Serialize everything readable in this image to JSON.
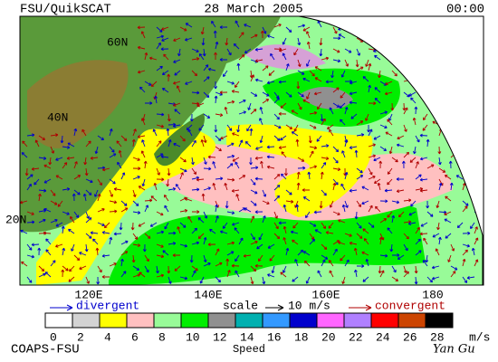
{
  "header": {
    "source": "FSU/QuikSCAT",
    "date": "28 March 2005",
    "time": "00:00"
  },
  "map": {
    "latitude_labels": [
      "60N",
      "40N",
      "20N"
    ],
    "longitude_labels": [
      "120E",
      "140E",
      "160E",
      "180"
    ]
  },
  "legend": {
    "divergent": "divergent",
    "scale": "scale",
    "scale_value": "10 m/s",
    "convergent": "convergent"
  },
  "colorbar": {
    "labels": [
      0,
      2,
      4,
      6,
      8,
      10,
      12,
      14,
      16,
      18,
      20,
      22,
      24,
      26,
      28
    ],
    "colors": [
      "#ffffff",
      "#d3d3d3",
      "#ffff00",
      "#ffc0c0",
      "#98fb98",
      "#00ee00",
      "#909090",
      "#00b0b0",
      "#3399ff",
      "#0000cc",
      "#ff66ff",
      "#b080ff",
      "#ff0000",
      "#cc4400",
      "#000000"
    ],
    "unit": "m/s",
    "title": "Speed"
  },
  "footer": {
    "organization": "COAPS-FSU",
    "signature": "Yan Gu"
  }
}
